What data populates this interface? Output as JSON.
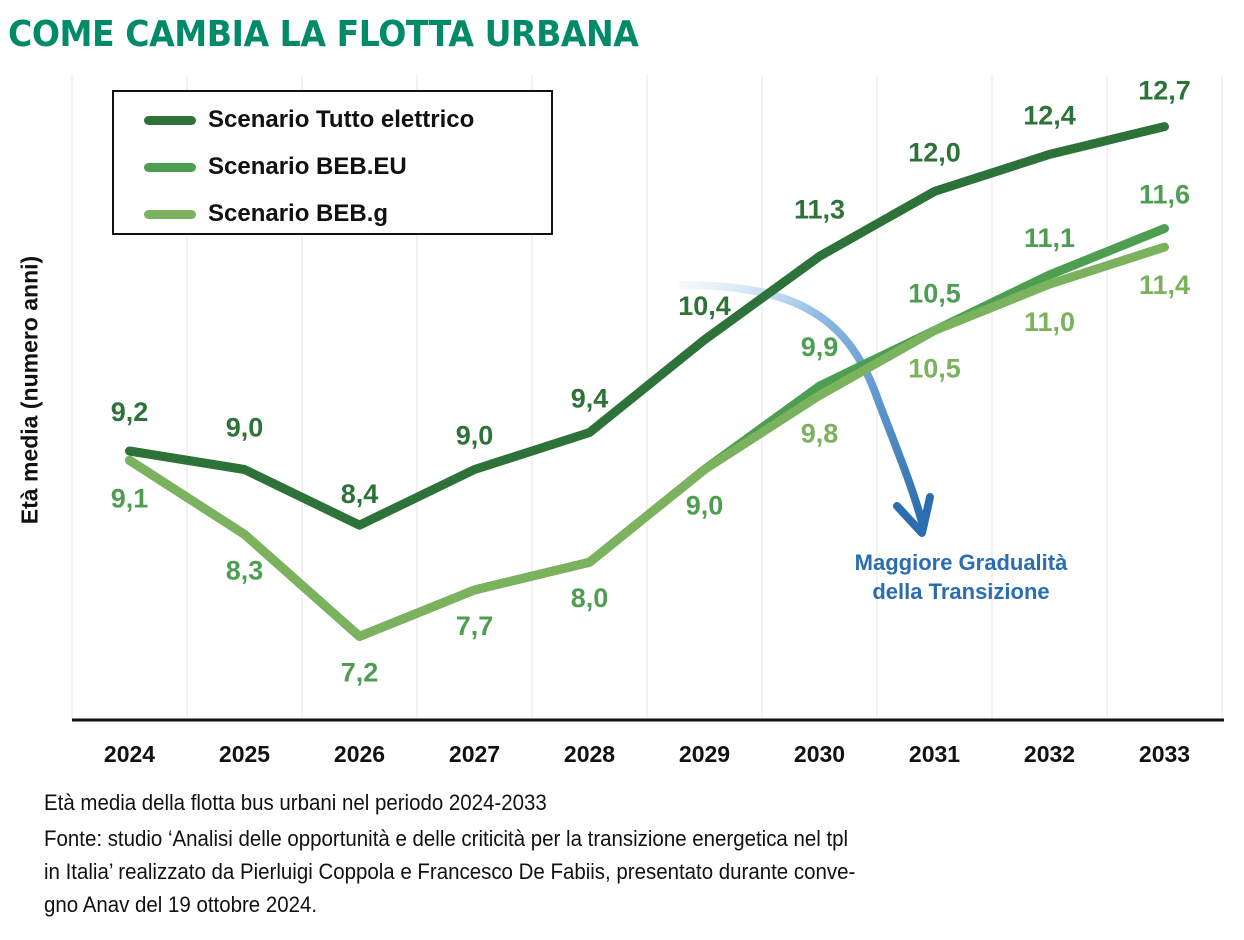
{
  "title": "COME CAMBIA LA FLOTTA URBANA",
  "colors": {
    "title": "#008B68",
    "series_dark": "#2D7238",
    "series_mid": "#4E9E52",
    "series_light": "#7AB25E",
    "label_mid": "#4E9E52",
    "label_light": "#7AB25E",
    "annotation": "#2A6DB0",
    "grid": "#EEEEEE",
    "axis": "#111111"
  },
  "legend": {
    "items": [
      {
        "label": "Scenario Tutto elettrico",
        "color": "#2D7238"
      },
      {
        "label": "Scenario BEB.EU",
        "color": "#4E9E52"
      },
      {
        "label": "Scenario BEB.g",
        "color": "#7AB25E"
      }
    ]
  },
  "annotation": {
    "line1": "Maggiore Gradualità",
    "line2": "della Transizione",
    "icon": "curved-arrow-down-icon"
  },
  "captions": {
    "subtitle": "Età media della flotta bus urbani nel periodo 2024-2033",
    "source_line1": "Fonte: studio ‘Analisi delle opportunità e delle criticità per la transizione energetica nel tpl",
    "source_line2": "in Italia’ realizzato da Pierluigi Coppola e Francesco De Fabiis, presentato durante conve-",
    "source_line3": "gno  Anav del 19 ottobre 2024."
  },
  "chart_data": {
    "type": "line",
    "title": "COME CAMBIA LA FLOTTA URBANA",
    "xlabel": "",
    "ylabel": "Età media (numero anni)",
    "categories": [
      "2024",
      "2025",
      "2026",
      "2027",
      "2028",
      "2029",
      "2030",
      "2031",
      "2032",
      "2033"
    ],
    "ylim": [
      6.0,
      13.5
    ],
    "grid": "vertical",
    "legend_position": "top-left",
    "series": [
      {
        "name": "Scenario Tutto elettrico",
        "values": [
          9.2,
          9.0,
          8.4,
          9.0,
          9.4,
          10.4,
          11.3,
          12.0,
          12.4,
          12.7
        ],
        "labels": [
          "9,2",
          "9,0",
          "8,4",
          "9,0",
          "9,4",
          "10,4",
          "11,3",
          "12,0",
          "12,4",
          "12,7"
        ]
      },
      {
        "name": "Scenario BEB.EU",
        "values": [
          9.1,
          8.3,
          7.2,
          7.7,
          8.0,
          9.0,
          9.9,
          10.5,
          11.1,
          11.6
        ],
        "labels": [
          "",
          "",
          "",
          "",
          "",
          "",
          "9,9",
          "10,5",
          "11,1",
          "11,6"
        ]
      },
      {
        "name": "Scenario BEB.g",
        "values": [
          9.1,
          8.3,
          7.2,
          7.7,
          8.0,
          9.0,
          9.8,
          10.5,
          11.0,
          11.4
        ],
        "labels": [
          "9,1",
          "8,3",
          "7,2",
          "7,7",
          "8,0",
          "9,0",
          "9,8",
          "10,5",
          "11,0",
          "11,4"
        ]
      }
    ],
    "annotations": [
      "Maggiore Gradualità della Transizione"
    ]
  }
}
